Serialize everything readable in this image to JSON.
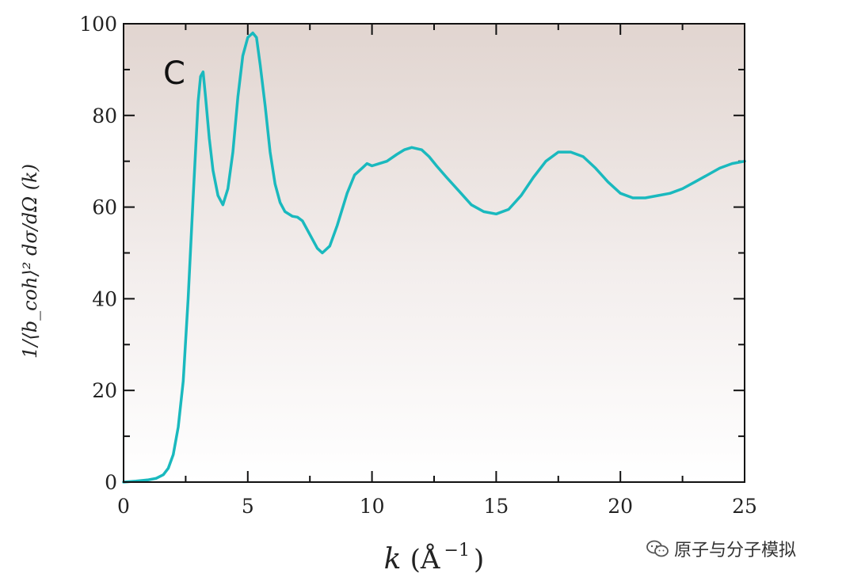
{
  "chart_data": {
    "type": "line",
    "panel_label": "C",
    "xlabel_main": "k",
    "xlabel_unit": "(Å",
    "xlabel_exp": "−1",
    "xlabel_close": ")",
    "ylabel": "1/⟨b_coh⟩² dσ/dΩ (k)",
    "xlim": [
      0,
      25
    ],
    "ylim": [
      0,
      100
    ],
    "x_ticks": [
      "0",
      "5",
      "10",
      "15",
      "20",
      "25"
    ],
    "y_ticks": [
      "0",
      "20",
      "40",
      "60",
      "80",
      "100"
    ],
    "series": [
      {
        "color": "#1ab9be",
        "x": [
          0,
          0.5,
          1.0,
          1.3,
          1.6,
          1.8,
          2.0,
          2.2,
          2.4,
          2.6,
          2.8,
          3.0,
          3.1,
          3.2,
          3.3,
          3.45,
          3.6,
          3.8,
          4.0,
          4.2,
          4.4,
          4.6,
          4.8,
          5.0,
          5.2,
          5.35,
          5.5,
          5.7,
          5.9,
          6.1,
          6.3,
          6.5,
          6.8,
          7.0,
          7.2,
          7.5,
          7.8,
          8.0,
          8.3,
          8.6,
          9.0,
          9.3,
          9.6,
          9.8,
          10.0,
          10.3,
          10.6,
          11.0,
          11.3,
          11.6,
          12.0,
          12.3,
          12.6,
          13.0,
          13.5,
          14.0,
          14.5,
          15.0,
          15.5,
          16.0,
          16.5,
          17.0,
          17.5,
          18.0,
          18.5,
          19.0,
          19.5,
          20.0,
          20.5,
          21.0,
          21.5,
          22.0,
          22.5,
          23.0,
          23.5,
          24.0,
          24.5,
          25.0
        ],
        "y": [
          0,
          0.2,
          0.5,
          0.8,
          1.6,
          3.0,
          6.0,
          12.0,
          22.0,
          40.0,
          62.0,
          83.0,
          88.5,
          89.5,
          84.0,
          75.0,
          68.0,
          62.5,
          60.5,
          64.0,
          72.0,
          84.0,
          93.0,
          97.0,
          98.0,
          97.0,
          91.0,
          82.0,
          72.0,
          65.0,
          61.0,
          59.0,
          58.0,
          57.8,
          57.0,
          54.0,
          51.0,
          50.0,
          51.5,
          56.0,
          63.0,
          67.0,
          68.5,
          69.5,
          69.0,
          69.5,
          70.0,
          71.5,
          72.5,
          73.0,
          72.5,
          71.0,
          69.0,
          66.5,
          63.5,
          60.5,
          59.0,
          58.5,
          59.5,
          62.5,
          66.5,
          70.0,
          72.0,
          72.0,
          71.0,
          68.5,
          65.5,
          63.0,
          62.0,
          62.0,
          62.5,
          63.0,
          64.0,
          65.5,
          67.0,
          68.5,
          69.5,
          70.0
        ]
      }
    ]
  },
  "watermark": {
    "icon": "wechat-icon",
    "text": "原子与分子模拟"
  }
}
